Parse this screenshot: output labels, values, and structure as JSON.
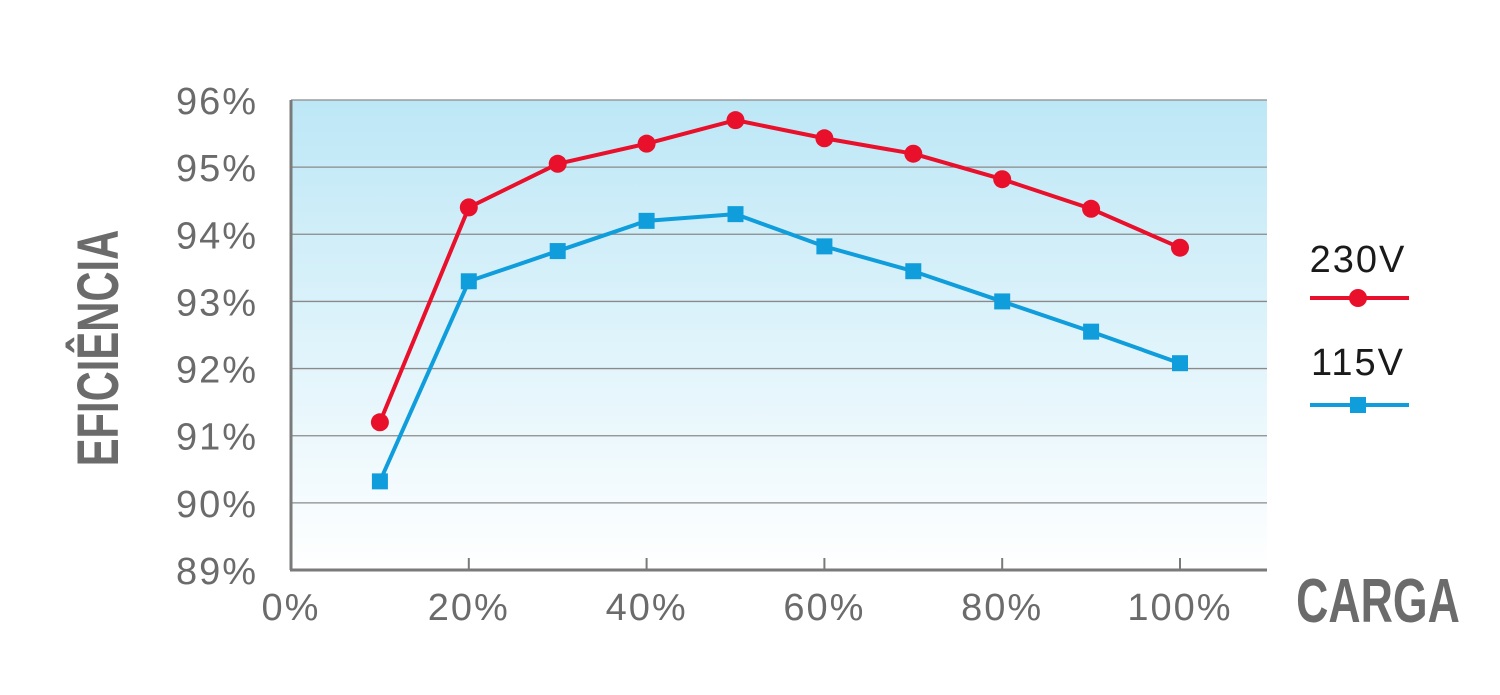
{
  "chart_data": {
    "type": "line",
    "xlabel": "CARGA",
    "ylabel": "EFICIÊNCIA",
    "xlim": [
      0,
      100
    ],
    "ylim": [
      89,
      96
    ],
    "x_ticks": [
      0,
      20,
      40,
      60,
      80,
      100
    ],
    "x_tick_labels": [
      "0%",
      "20%",
      "40%",
      "60%",
      "80%",
      "100%"
    ],
    "y_ticks": [
      89,
      90,
      91,
      92,
      93,
      94,
      95,
      96
    ],
    "y_tick_labels": [
      "89%",
      "90%",
      "91%",
      "92%",
      "93%",
      "94%",
      "95%",
      "96%"
    ],
    "grid": "horizontal",
    "legend_position": "right",
    "x": [
      10,
      20,
      30,
      40,
      50,
      60,
      70,
      80,
      90,
      100
    ],
    "series": [
      {
        "name": "230V",
        "color": "#e8102a",
        "marker": "circle",
        "values": [
          91.2,
          94.4,
          95.05,
          95.35,
          95.7,
          95.43,
          95.2,
          94.82,
          94.38,
          93.8
        ]
      },
      {
        "name": "115V",
        "color": "#109ddb",
        "marker": "square",
        "values": [
          90.32,
          93.3,
          93.75,
          94.2,
          94.3,
          93.82,
          93.45,
          93.0,
          92.55,
          92.08
        ]
      }
    ]
  }
}
